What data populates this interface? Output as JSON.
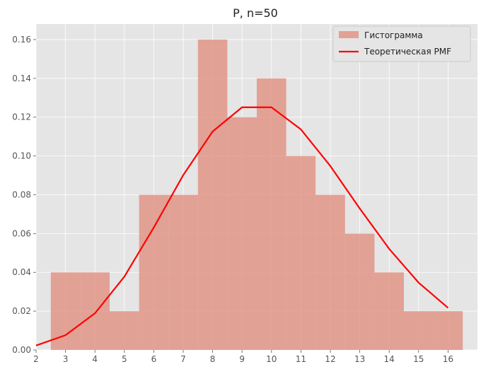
{
  "chart_data": {
    "type": "bar",
    "title": "P, n=50",
    "xlabel": "",
    "ylabel": "",
    "xlim": [
      2,
      17
    ],
    "ylim": [
      0,
      0.168
    ],
    "xticks": [
      2,
      3,
      4,
      5,
      6,
      7,
      8,
      9,
      10,
      11,
      12,
      13,
      14,
      15,
      16
    ],
    "yticks": [
      0.0,
      0.02,
      0.04,
      0.06,
      0.08,
      0.1,
      0.12,
      0.14,
      0.16
    ],
    "ytick_labels": [
      "0.00",
      "0.02",
      "0.04",
      "0.06",
      "0.08",
      "0.10",
      "0.12",
      "0.14",
      "0.16"
    ],
    "grid": true,
    "legend_position": "top-right",
    "histogram": {
      "name": "Гистограмма",
      "color": "#e0897a",
      "bins": [
        {
          "x0": 2.5,
          "x1": 3.5,
          "value": 0.04
        },
        {
          "x0": 3.5,
          "x1": 4.5,
          "value": 0.04
        },
        {
          "x0": 4.5,
          "x1": 5.5,
          "value": 0.02
        },
        {
          "x0": 5.5,
          "x1": 6.5,
          "value": 0.08
        },
        {
          "x0": 6.5,
          "x1": 7.5,
          "value": 0.08
        },
        {
          "x0": 7.5,
          "x1": 8.5,
          "value": 0.16
        },
        {
          "x0": 8.5,
          "x1": 9.5,
          "value": 0.12
        },
        {
          "x0": 9.5,
          "x1": 10.5,
          "value": 0.14
        },
        {
          "x0": 10.5,
          "x1": 11.5,
          "value": 0.1
        },
        {
          "x0": 11.5,
          "x1": 12.5,
          "value": 0.08
        },
        {
          "x0": 12.5,
          "x1": 13.5,
          "value": 0.06
        },
        {
          "x0": 13.5,
          "x1": 14.5,
          "value": 0.04
        },
        {
          "x0": 14.5,
          "x1": 15.5,
          "value": 0.02
        },
        {
          "x0": 15.5,
          "x1": 16.5,
          "value": 0.02
        }
      ]
    },
    "pmf": {
      "name": "Теоретическая PMF",
      "color": "#ff0000",
      "x": [
        2,
        3,
        4,
        5,
        6,
        7,
        8,
        9,
        10,
        11,
        12,
        13,
        14,
        15,
        16
      ],
      "y": [
        0.0023,
        0.0076,
        0.0189,
        0.0378,
        0.0631,
        0.0901,
        0.1126,
        0.1251,
        0.1251,
        0.1137,
        0.0948,
        0.0729,
        0.0521,
        0.0347,
        0.0217
      ]
    }
  }
}
